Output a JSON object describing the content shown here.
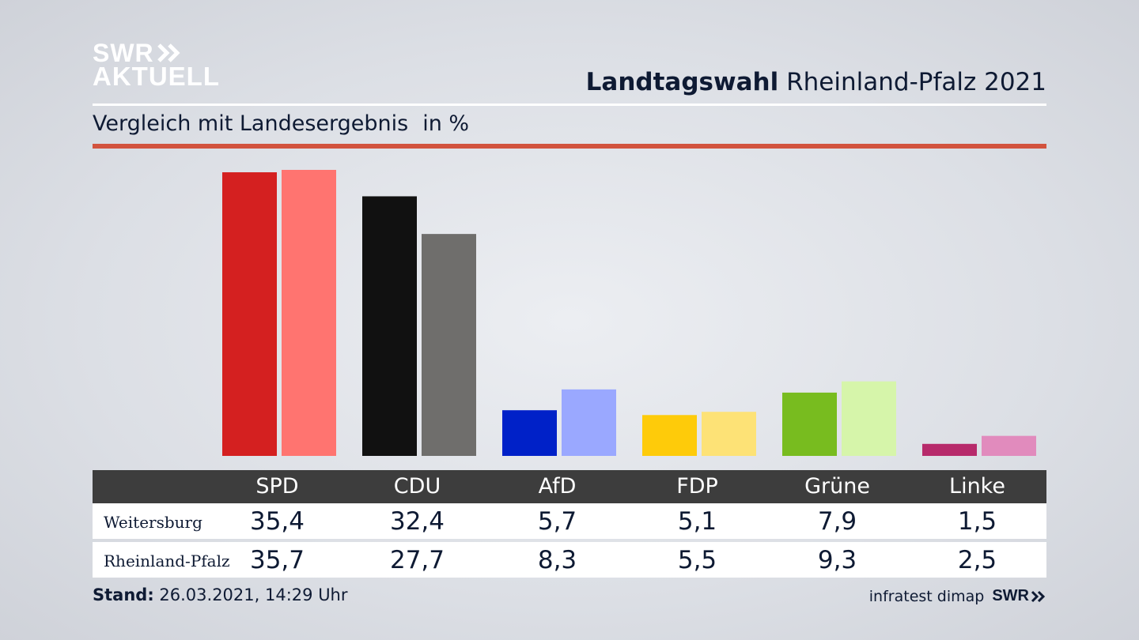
{
  "logo": {
    "line1": "SWR",
    "line2": "AKTUELL"
  },
  "header": {
    "title_bold": "Landtagswahl",
    "title_rest": "Rheinland-Pfalz 2021"
  },
  "subtitle": {
    "text": "Vergleich mit Landesergebnis",
    "unit": "in %"
  },
  "colors": {
    "accent_rule": "#d2533e",
    "table_header": "#3d3d3d",
    "party_local": [
      "#d42020",
      "#111111",
      "#0021c8",
      "#fecb0a",
      "#78bc1f",
      "#b72a6b"
    ],
    "party_state": [
      "#ff7470",
      "#6f6e6c",
      "#9aa8ff",
      "#fde276",
      "#d6f5aa",
      "#e18bbd"
    ]
  },
  "chart_data": {
    "type": "bar",
    "categories": [
      "SPD",
      "CDU",
      "AfD",
      "FDP",
      "Grüne",
      "Linke"
    ],
    "series": [
      {
        "name": "Weitersburg",
        "values": [
          35.4,
          32.4,
          5.7,
          5.1,
          7.9,
          1.5
        ]
      },
      {
        "name": "Rheinland-Pfalz",
        "values": [
          35.7,
          27.7,
          8.3,
          5.5,
          9.3,
          2.5
        ]
      }
    ],
    "ylim": [
      0,
      35.7
    ]
  },
  "table": {
    "rows": [
      {
        "label": "Weitersburg",
        "values": [
          "35,4",
          "32,4",
          "5,7",
          "5,1",
          "7,9",
          "1,5"
        ]
      },
      {
        "label": "Rheinland-Pfalz",
        "values": [
          "35,7",
          "27,7",
          "8,3",
          "5,5",
          "9,3",
          "2,5"
        ]
      }
    ]
  },
  "footer": {
    "stand_label": "Stand:",
    "stand_value": "26.03.2021, 14:29 Uhr",
    "source": "infratest dimap",
    "brand": "SWR"
  }
}
